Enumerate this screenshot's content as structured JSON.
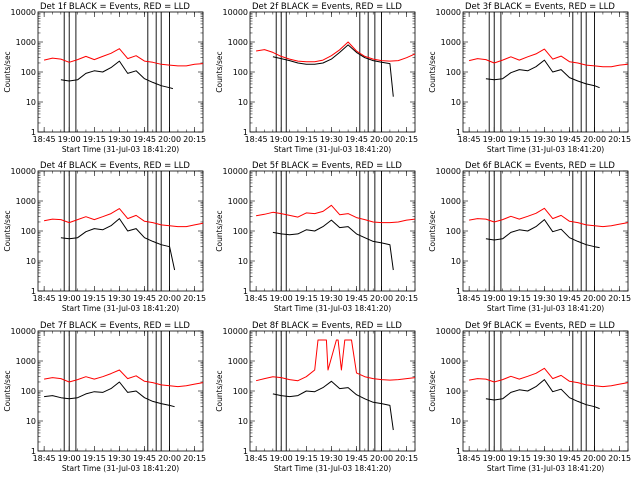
{
  "figure": {
    "y_axis_label": "Counts/sec",
    "x_axis_label": "Start Time (31-Jul-03 18:41:20)",
    "x_tick_labels": [
      "18:45",
      "19:00",
      "19:15",
      "19:30",
      "19:45",
      "20:00",
      "20:15"
    ],
    "y_tick_labels": [
      "1",
      "10",
      "100",
      "1000",
      "10000"
    ],
    "colors": {
      "events": "#000000",
      "lld": "#ff0000"
    }
  },
  "chart_data": [
    {
      "type": "line",
      "title": "Det 1f BLACK = Events, RED = LLD",
      "xlabel": "Start Time (31-Jul-03 18:41:20)",
      "ylabel": "Counts/sec",
      "yscale": "log",
      "ylim": [
        1,
        10000
      ],
      "xlim": [
        "18:41:20",
        "20:20"
      ],
      "series": [
        {
          "name": "Events",
          "color": "#000000",
          "x": [
            "18:55",
            "19:00",
            "19:05",
            "19:10",
            "19:15",
            "19:20",
            "19:25",
            "19:30",
            "19:35",
            "19:40",
            "19:45",
            "19:50",
            "19:55",
            "20:00",
            "20:02"
          ],
          "y": [
            55,
            50,
            55,
            90,
            110,
            100,
            140,
            230,
            90,
            110,
            60,
            45,
            35,
            30,
            28
          ]
        },
        {
          "name": "LLD",
          "color": "#ff0000",
          "x": [
            "18:45",
            "18:50",
            "18:55",
            "19:00",
            "19:05",
            "19:10",
            "19:15",
            "19:20",
            "19:25",
            "19:30",
            "19:35",
            "19:40",
            "19:45",
            "19:50",
            "19:55",
            "20:00",
            "20:05",
            "20:10",
            "20:15",
            "20:20"
          ],
          "y": [
            250,
            290,
            270,
            210,
            260,
            330,
            260,
            330,
            420,
            600,
            280,
            350,
            230,
            210,
            180,
            170,
            160,
            160,
            180,
            190
          ]
        }
      ],
      "vertical_lines": [
        "18:57",
        "19:00",
        "19:04",
        "19:47",
        "19:52",
        "19:55",
        "20:00"
      ]
    },
    {
      "type": "line",
      "title": "Det 2f BLACK = Events, RED = LLD",
      "xlabel": "Start Time (31-Jul-03 18:41:20)",
      "ylabel": "Counts/sec",
      "yscale": "log",
      "ylim": [
        1,
        10000
      ],
      "xlim": [
        "18:41:20",
        "20:20"
      ],
      "series": [
        {
          "name": "Events",
          "color": "#000000",
          "x": [
            "18:55",
            "19:00",
            "19:05",
            "19:10",
            "19:15",
            "19:20",
            "19:25",
            "19:30",
            "19:35",
            "19:40",
            "19:45",
            "19:50",
            "19:55",
            "20:00",
            "20:05",
            "20:07"
          ],
          "y": [
            320,
            280,
            240,
            200,
            180,
            180,
            200,
            270,
            450,
            800,
            450,
            300,
            240,
            210,
            190,
            15
          ]
        },
        {
          "name": "LLD",
          "color": "#ff0000",
          "x": [
            "18:45",
            "18:50",
            "18:55",
            "19:00",
            "19:05",
            "19:10",
            "19:15",
            "19:20",
            "19:25",
            "19:30",
            "19:35",
            "19:40",
            "19:45",
            "19:50",
            "19:55",
            "20:00",
            "20:05",
            "20:10",
            "20:15",
            "20:20"
          ],
          "y": [
            500,
            560,
            450,
            330,
            270,
            230,
            220,
            220,
            250,
            350,
            550,
            1000,
            500,
            330,
            270,
            240,
            230,
            240,
            300,
            400
          ]
        }
      ],
      "vertical_lines": [
        "18:57",
        "19:00",
        "19:03",
        "19:47",
        "19:52",
        "19:56",
        "20:00"
      ]
    },
    {
      "type": "line",
      "title": "Det 3f BLACK = Events, RED = LLD",
      "xlabel": "Start Time (31-Jul-03 18:41:20)",
      "ylabel": "Counts/sec",
      "yscale": "log",
      "ylim": [
        1,
        10000
      ],
      "xlim": [
        "18:41:20",
        "20:20"
      ],
      "series": [
        {
          "name": "Events",
          "color": "#000000",
          "x": [
            "18:55",
            "19:00",
            "19:05",
            "19:10",
            "19:15",
            "19:20",
            "19:25",
            "19:30",
            "19:35",
            "19:40",
            "19:45",
            "19:50",
            "19:55",
            "20:00",
            "20:03"
          ],
          "y": [
            60,
            55,
            60,
            95,
            120,
            110,
            150,
            250,
            100,
            120,
            65,
            50,
            40,
            35,
            30
          ]
        },
        {
          "name": "LLD",
          "color": "#ff0000",
          "x": [
            "18:45",
            "18:50",
            "18:55",
            "19:00",
            "19:05",
            "19:10",
            "19:15",
            "19:20",
            "19:25",
            "19:30",
            "19:35",
            "19:40",
            "19:45",
            "19:50",
            "19:55",
            "20:00",
            "20:05",
            "20:10",
            "20:15",
            "20:20"
          ],
          "y": [
            240,
            280,
            260,
            200,
            250,
            320,
            250,
            320,
            400,
            580,
            270,
            340,
            220,
            200,
            170,
            160,
            150,
            150,
            170,
            180
          ]
        }
      ],
      "vertical_lines": [
        "18:57",
        "19:00",
        "19:04",
        "19:47",
        "19:52",
        "19:55",
        "20:00"
      ]
    },
    {
      "type": "line",
      "title": "Det 4f BLACK = Events, RED = LLD",
      "xlabel": "Start Time (31-Jul-03 18:41:20)",
      "ylabel": "Counts/sec",
      "yscale": "log",
      "ylim": [
        1,
        10000
      ],
      "xlim": [
        "18:41:20",
        "20:20"
      ],
      "series": [
        {
          "name": "Events",
          "color": "#000000",
          "x": [
            "18:55",
            "19:00",
            "19:05",
            "19:10",
            "19:15",
            "19:20",
            "19:25",
            "19:30",
            "19:35",
            "19:40",
            "19:45",
            "19:50",
            "19:55",
            "20:00",
            "20:03"
          ],
          "y": [
            60,
            55,
            60,
            95,
            120,
            110,
            150,
            260,
            100,
            120,
            60,
            45,
            35,
            30,
            5
          ]
        },
        {
          "name": "LLD",
          "color": "#ff0000",
          "x": [
            "18:45",
            "18:50",
            "18:55",
            "19:00",
            "19:05",
            "19:10",
            "19:15",
            "19:20",
            "19:25",
            "19:30",
            "19:35",
            "19:40",
            "19:45",
            "19:50",
            "19:55",
            "20:00",
            "20:05",
            "20:10",
            "20:15",
            "20:20"
          ],
          "y": [
            220,
            250,
            240,
            190,
            240,
            300,
            240,
            300,
            380,
            560,
            260,
            330,
            210,
            190,
            160,
            150,
            140,
            140,
            160,
            180
          ]
        }
      ],
      "vertical_lines": [
        "18:57",
        "19:00",
        "19:04",
        "19:47",
        "19:52",
        "19:55",
        "20:00"
      ]
    },
    {
      "type": "line",
      "title": "Det 5f BLACK = Events, RED = LLD",
      "xlabel": "Start Time (31-Jul-03 18:41:20)",
      "ylabel": "Counts/sec",
      "yscale": "log",
      "ylim": [
        1,
        10000
      ],
      "xlim": [
        "18:41:20",
        "20:20"
      ],
      "series": [
        {
          "name": "Events",
          "color": "#000000",
          "x": [
            "18:55",
            "19:00",
            "19:05",
            "19:10",
            "19:15",
            "19:20",
            "19:25",
            "19:30",
            "19:35",
            "19:40",
            "19:45",
            "19:50",
            "19:55",
            "20:00",
            "20:05",
            "20:07"
          ],
          "y": [
            90,
            80,
            75,
            80,
            110,
            100,
            140,
            230,
            130,
            140,
            80,
            60,
            45,
            40,
            35,
            5
          ]
        },
        {
          "name": "LLD",
          "color": "#ff0000",
          "x": [
            "18:45",
            "18:50",
            "18:55",
            "19:00",
            "19:05",
            "19:10",
            "19:15",
            "19:20",
            "19:25",
            "19:30",
            "19:35",
            "19:40",
            "19:45",
            "19:50",
            "19:55",
            "20:00",
            "20:05",
            "20:10",
            "20:15",
            "20:20"
          ],
          "y": [
            320,
            360,
            420,
            380,
            330,
            290,
            400,
            380,
            450,
            720,
            350,
            380,
            280,
            240,
            200,
            190,
            190,
            200,
            230,
            250
          ]
        }
      ],
      "vertical_lines": [
        "18:57",
        "19:00",
        "19:03",
        "19:47",
        "19:52",
        "19:56",
        "20:00"
      ]
    },
    {
      "type": "line",
      "title": "Det 6f BLACK = Events, RED = LLD",
      "xlabel": "Start Time (31-Jul-03 18:41:20)",
      "ylabel": "Counts/sec",
      "yscale": "log",
      "ylim": [
        1,
        10000
      ],
      "xlim": [
        "18:41:20",
        "20:20"
      ],
      "series": [
        {
          "name": "Events",
          "color": "#000000",
          "x": [
            "18:55",
            "19:00",
            "19:05",
            "19:10",
            "19:15",
            "19:20",
            "19:25",
            "19:30",
            "19:35",
            "19:40",
            "19:45",
            "19:50",
            "19:55",
            "20:00",
            "20:03"
          ],
          "y": [
            55,
            50,
            55,
            90,
            110,
            100,
            140,
            240,
            95,
            115,
            60,
            45,
            35,
            30,
            28
          ]
        },
        {
          "name": "LLD",
          "color": "#ff0000",
          "x": [
            "18:45",
            "18:50",
            "18:55",
            "19:00",
            "19:05",
            "19:10",
            "19:15",
            "19:20",
            "19:25",
            "19:30",
            "19:35",
            "19:40",
            "19:45",
            "19:50",
            "19:55",
            "20:00",
            "20:05",
            "20:10",
            "20:15",
            "20:20"
          ],
          "y": [
            230,
            260,
            250,
            200,
            240,
            310,
            250,
            310,
            390,
            570,
            260,
            330,
            210,
            190,
            160,
            150,
            140,
            150,
            170,
            190
          ]
        }
      ],
      "vertical_lines": [
        "18:57",
        "19:00",
        "19:04",
        "19:47",
        "19:52",
        "19:55",
        "20:00"
      ]
    },
    {
      "type": "line",
      "title": "Det 7f BLACK = Events, RED = LLD",
      "xlabel": "Start Time (31-Jul-03 18:41:20)",
      "ylabel": "Counts/sec",
      "yscale": "log",
      "ylim": [
        1,
        10000
      ],
      "xlim": [
        "18:41:20",
        "20:20"
      ],
      "series": [
        {
          "name": "Events",
          "color": "#000000",
          "x": [
            "18:45",
            "18:50",
            "18:55",
            "19:00",
            "19:05",
            "19:10",
            "19:15",
            "19:20",
            "19:25",
            "19:30",
            "19:35",
            "19:40",
            "19:45",
            "19:50",
            "19:55",
            "20:00",
            "20:03"
          ],
          "y": [
            65,
            70,
            60,
            55,
            60,
            80,
            95,
            90,
            120,
            200,
            90,
            100,
            60,
            45,
            38,
            33,
            30
          ]
        },
        {
          "name": "LLD",
          "color": "#ff0000",
          "x": [
            "18:45",
            "18:50",
            "18:55",
            "19:00",
            "19:05",
            "19:10",
            "19:15",
            "19:20",
            "19:25",
            "19:30",
            "19:35",
            "19:40",
            "19:45",
            "19:50",
            "19:55",
            "20:00",
            "20:05",
            "20:10",
            "20:15",
            "20:20"
          ],
          "y": [
            250,
            280,
            260,
            200,
            240,
            300,
            250,
            300,
            380,
            500,
            260,
            320,
            210,
            190,
            160,
            150,
            140,
            150,
            170,
            190
          ]
        }
      ],
      "vertical_lines": [
        "18:57",
        "19:00",
        "19:04",
        "19:47",
        "19:52",
        "19:55",
        "20:00"
      ]
    },
    {
      "type": "line",
      "title": "Det 8f BLACK = Events, RED = LLD",
      "xlabel": "Start Time (31-Jul-03 18:41:20)",
      "ylabel": "Counts/sec",
      "yscale": "log",
      "ylim": [
        1,
        10000
      ],
      "xlim": [
        "18:41:20",
        "20:20"
      ],
      "series": [
        {
          "name": "Events",
          "color": "#000000",
          "x": [
            "18:55",
            "19:00",
            "19:05",
            "19:10",
            "19:15",
            "19:20",
            "19:25",
            "19:30",
            "19:35",
            "19:40",
            "19:45",
            "19:50",
            "19:55",
            "20:00",
            "20:05",
            "20:07"
          ],
          "y": [
            80,
            70,
            65,
            70,
            100,
            95,
            130,
            210,
            120,
            130,
            75,
            55,
            42,
            38,
            33,
            5
          ]
        },
        {
          "name": "LLD",
          "color": "#ff0000",
          "x": [
            "18:45",
            "18:50",
            "18:55",
            "19:00",
            "19:05",
            "19:10",
            "19:15",
            "19:20",
            "19:22",
            "19:27",
            "19:28",
            "19:33",
            "19:34",
            "19:36",
            "19:38",
            "19:42",
            "19:45",
            "19:50",
            "19:55",
            "20:00",
            "20:05",
            "20:10",
            "20:15",
            "20:20"
          ],
          "y": [
            220,
            260,
            300,
            280,
            240,
            220,
            300,
            500,
            5000,
            5000,
            500,
            5000,
            5000,
            500,
            5000,
            5000,
            400,
            300,
            260,
            240,
            230,
            240,
            260,
            280
          ]
        }
      ],
      "vertical_lines": [
        "18:57",
        "19:00",
        "19:03",
        "19:47",
        "19:52",
        "19:56",
        "20:00"
      ]
    },
    {
      "type": "line",
      "title": "Det 9f BLACK = Events, RED = LLD",
      "xlabel": "Start Time (31-Jul-03 18:41:20)",
      "ylabel": "Counts/sec",
      "yscale": "log",
      "ylim": [
        1,
        10000
      ],
      "xlim": [
        "18:41:20",
        "20:20"
      ],
      "series": [
        {
          "name": "Events",
          "color": "#000000",
          "x": [
            "18:55",
            "19:00",
            "19:05",
            "19:10",
            "19:15",
            "19:20",
            "19:25",
            "19:30",
            "19:35",
            "19:40",
            "19:45",
            "19:50",
            "19:55",
            "20:00",
            "20:03"
          ],
          "y": [
            55,
            50,
            55,
            90,
            110,
            100,
            140,
            240,
            95,
            115,
            60,
            45,
            35,
            30,
            26
          ]
        },
        {
          "name": "LLD",
          "color": "#ff0000",
          "x": [
            "18:45",
            "18:50",
            "18:55",
            "19:00",
            "19:05",
            "19:10",
            "19:15",
            "19:20",
            "19:25",
            "19:30",
            "19:35",
            "19:40",
            "19:45",
            "19:50",
            "19:55",
            "20:00",
            "20:05",
            "20:10",
            "20:15",
            "20:20"
          ],
          "y": [
            230,
            260,
            250,
            200,
            240,
            310,
            250,
            310,
            390,
            570,
            260,
            330,
            210,
            190,
            160,
            150,
            140,
            150,
            170,
            190
          ]
        }
      ],
      "vertical_lines": [
        "18:57",
        "19:00",
        "19:04",
        "19:47",
        "19:52",
        "19:55",
        "20:00"
      ]
    }
  ]
}
